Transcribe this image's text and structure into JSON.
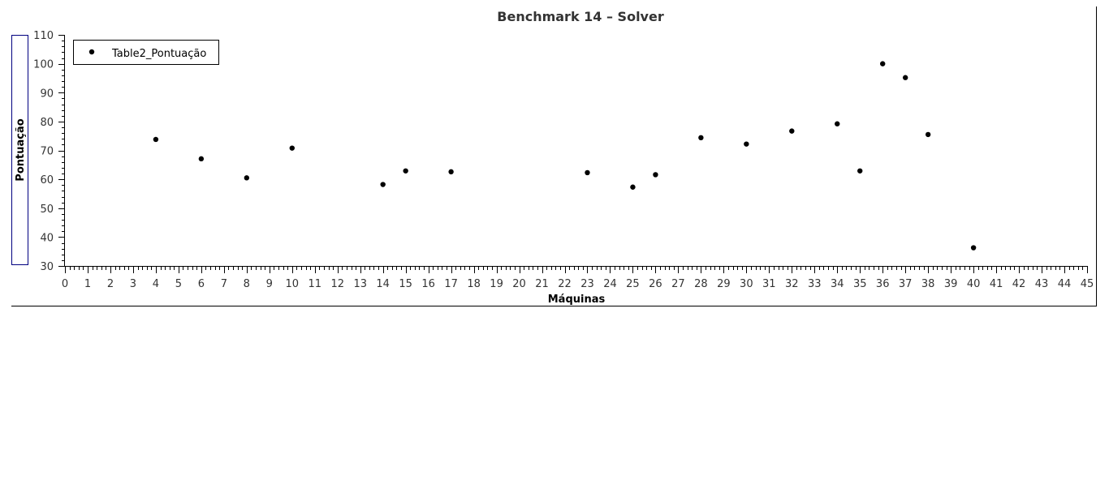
{
  "chart_data": {
    "type": "scatter",
    "title": "Benchmark 14 – Solver",
    "xlabel": "Máquinas",
    "ylabel": "Pontuação",
    "xlim": [
      0,
      45
    ],
    "ylim": [
      30,
      110
    ],
    "x_ticks": [
      0,
      1,
      2,
      3,
      4,
      5,
      6,
      7,
      8,
      9,
      10,
      11,
      12,
      13,
      14,
      15,
      16,
      17,
      18,
      19,
      20,
      21,
      22,
      23,
      24,
      25,
      26,
      27,
      28,
      29,
      30,
      31,
      32,
      33,
      34,
      35,
      36,
      37,
      38,
      39,
      40,
      41,
      42,
      43,
      44,
      45
    ],
    "y_ticks": [
      30,
      40,
      50,
      60,
      70,
      80,
      90,
      100,
      110
    ],
    "grid": false,
    "legend_position": "top-left",
    "series": [
      {
        "name": "Table2_Pontuação",
        "color": "#000000",
        "points": [
          {
            "x": 4,
            "y": 73.8
          },
          {
            "x": 6,
            "y": 67.1
          },
          {
            "x": 8,
            "y": 60.5
          },
          {
            "x": 10,
            "y": 70.8
          },
          {
            "x": 14,
            "y": 58.2
          },
          {
            "x": 15,
            "y": 62.9
          },
          {
            "x": 17,
            "y": 62.6
          },
          {
            "x": 23,
            "y": 62.3
          },
          {
            "x": 25,
            "y": 57.3
          },
          {
            "x": 26,
            "y": 61.6
          },
          {
            "x": 28,
            "y": 74.4
          },
          {
            "x": 30,
            "y": 72.2
          },
          {
            "x": 32,
            "y": 76.7
          },
          {
            "x": 34,
            "y": 79.2
          },
          {
            "x": 35,
            "y": 62.9
          },
          {
            "x": 36,
            "y": 100.0
          },
          {
            "x": 37,
            "y": 95.2
          },
          {
            "x": 38,
            "y": 75.5
          },
          {
            "x": 40,
            "y": 36.3
          }
        ]
      }
    ]
  }
}
